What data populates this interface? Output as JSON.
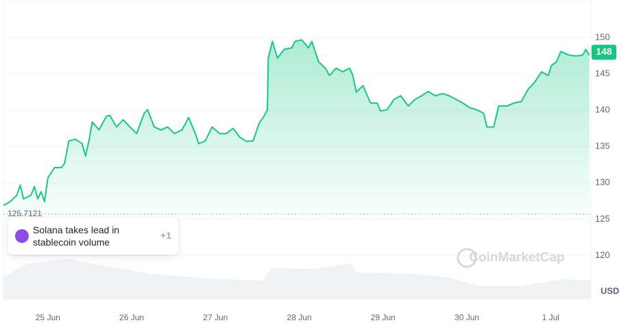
{
  "chart_data": {
    "type": "line",
    "x": [
      24.47,
      24.55,
      24.63,
      24.67,
      24.71,
      24.8,
      24.84,
      24.88,
      24.92,
      24.96,
      25.0,
      25.08,
      25.16,
      25.2,
      25.25,
      25.33,
      25.41,
      25.45,
      25.49,
      25.53,
      25.61,
      25.7,
      25.74,
      25.82,
      25.9,
      25.98,
      26.06,
      26.15,
      26.19,
      26.27,
      26.35,
      26.43,
      26.51,
      26.6,
      26.68,
      26.76,
      26.8,
      26.88,
      26.96,
      27.05,
      27.13,
      27.21,
      27.29,
      27.37,
      27.45,
      27.52,
      27.58,
      27.62,
      27.63,
      27.68,
      27.74,
      27.82,
      27.91,
      27.95,
      28.03,
      28.11,
      28.15,
      28.19,
      28.23,
      28.31,
      28.36,
      28.44,
      28.52,
      28.6,
      28.64,
      28.68,
      28.76,
      28.85,
      28.93,
      28.97,
      29.05,
      29.13,
      29.21,
      29.3,
      29.38,
      29.46,
      29.54,
      29.62,
      29.71,
      29.79,
      29.87,
      29.95,
      30.03,
      30.11,
      30.2,
      30.24,
      30.32,
      30.38,
      30.48,
      30.56,
      30.65,
      30.73,
      30.81,
      30.89,
      30.97,
      31.01,
      31.07,
      31.12,
      31.22,
      31.3,
      31.38,
      31.42,
      31.46
    ],
    "values": [
      126.9,
      127.4,
      128.3,
      129.7,
      127.8,
      128.3,
      129.5,
      127.8,
      128.8,
      127.4,
      130.7,
      132.1,
      132.1,
      132.7,
      135.8,
      136.0,
      135.4,
      133.7,
      135.8,
      138.4,
      137.3,
      139.2,
      139.3,
      137.7,
      138.7,
      137.7,
      136.8,
      139.6,
      140.1,
      137.7,
      137.3,
      137.7,
      136.8,
      137.3,
      139.0,
      136.8,
      135.4,
      135.8,
      137.7,
      136.8,
      136.8,
      137.5,
      136.3,
      135.7,
      135.8,
      138.2,
      139.2,
      140.1,
      147.2,
      149.5,
      147.2,
      148.4,
      148.6,
      149.5,
      149.7,
      148.6,
      149.5,
      148.1,
      146.7,
      145.8,
      144.8,
      145.8,
      145.3,
      145.8,
      144.8,
      142.5,
      143.4,
      141.0,
      141.0,
      139.9,
      140.1,
      141.5,
      142.0,
      140.6,
      141.5,
      142.0,
      142.6,
      142.0,
      142.3,
      142.0,
      141.5,
      141.0,
      140.4,
      140.1,
      139.6,
      137.7,
      137.7,
      140.6,
      140.6,
      141.0,
      141.2,
      142.9,
      143.9,
      145.3,
      144.8,
      146.2,
      146.7,
      148.1,
      147.6,
      147.5,
      147.6,
      148.4,
      147.6
    ],
    "color": "#16c784",
    "xlim": [
      24.47,
      31.48
    ],
    "xticks": [
      {
        "value": 25,
        "label": "25 Jun"
      },
      {
        "value": 26,
        "label": "26 Jun"
      },
      {
        "value": 27,
        "label": "27 Jun"
      },
      {
        "value": 28,
        "label": "28 Jun"
      },
      {
        "value": 29,
        "label": "29 Jun"
      },
      {
        "value": 30,
        "label": "30 Jun"
      },
      {
        "value": 31,
        "label": "1 Jul"
      }
    ],
    "ylim": [
      114,
      155.2
    ],
    "yticks": [
      120,
      125,
      130,
      135,
      140,
      145,
      150
    ],
    "grid": true,
    "baseline": 125.7121,
    "current_price": 148,
    "currency": "USD",
    "watermark": "CoinMarketCap",
    "annotation": {
      "text": "Solana takes lead in stablecoin volume",
      "count": "+1"
    }
  }
}
